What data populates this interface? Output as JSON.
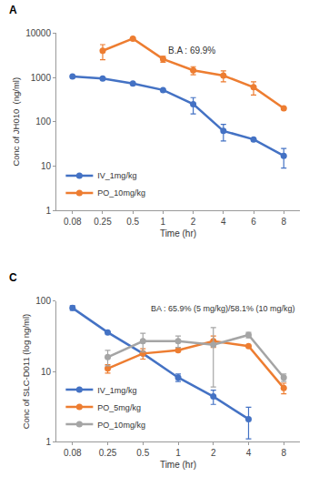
{
  "chart_data": [
    {
      "type": "line",
      "annotations": [
        "A",
        "B.A : 69.9%"
      ],
      "x_label": "Time (hr)",
      "y_label": "Conc of JH010  (ng/ml)",
      "categories": [
        "0.08",
        "0.25",
        "0.5",
        "1",
        "2",
        "4",
        "6",
        "8"
      ],
      "series": [
        {
          "name": "IV_1mg/kg",
          "color": "#4472c4",
          "marker": "circle",
          "values": [
            1050,
            950,
            730,
            520,
            250,
            62,
            40,
            17
          ],
          "errors": [
            null,
            null,
            null,
            null,
            100,
            25,
            null,
            8
          ]
        },
        {
          "name": "PO_10mg/kg",
          "color": "#ed7d31",
          "marker": "circle",
          "values": [
            null,
            4000,
            7500,
            2600,
            1450,
            1100,
            600,
            200
          ],
          "errors": [
            null,
            1500,
            null,
            400,
            300,
            300,
            200,
            null
          ]
        }
      ],
      "log": "y",
      "ylim": [
        1,
        10000
      ],
      "yticks": [
        1,
        10,
        100,
        1000,
        10000
      ],
      "grid": false,
      "legend": "lower left"
    },
    {
      "type": "line",
      "annotations": [
        "C",
        "BA : 65.9% (5 mg/kg)/58.1% (10 mg/kg)"
      ],
      "x_label": "Time (hr)",
      "y_label": "Conc of SLC-D011 (log ng/ml)",
      "categories": [
        "0.08",
        "0.25",
        "0.5",
        "1",
        "2",
        "4",
        "8"
      ],
      "series": [
        {
          "name": "IV_1mg/kg",
          "color": "#4472c4",
          "marker": "circle",
          "values": [
            80,
            36,
            18,
            8.2,
            4.4,
            2.1,
            null
          ],
          "errors": [
            6,
            null,
            null,
            1,
            1,
            1,
            null
          ]
        },
        {
          "name": "PO_5mg/kg",
          "color": "#ed7d31",
          "marker": "circle",
          "values": [
            null,
            11,
            18,
            20,
            27,
            23,
            5.8
          ],
          "errors": [
            null,
            1.5,
            3,
            null,
            5,
            null,
            1
          ]
        },
        {
          "name": "PO_10mg/kg",
          "color": "#a5a5a5",
          "marker": "circle",
          "values": [
            null,
            16,
            27,
            27,
            24,
            33,
            8.2
          ],
          "errors": [
            null,
            4,
            8,
            5,
            18,
            3,
            1
          ]
        }
      ],
      "log": "y",
      "ylim": [
        1,
        100
      ],
      "yticks": [
        1,
        10,
        100
      ],
      "grid": false,
      "legend": "lower left"
    }
  ]
}
